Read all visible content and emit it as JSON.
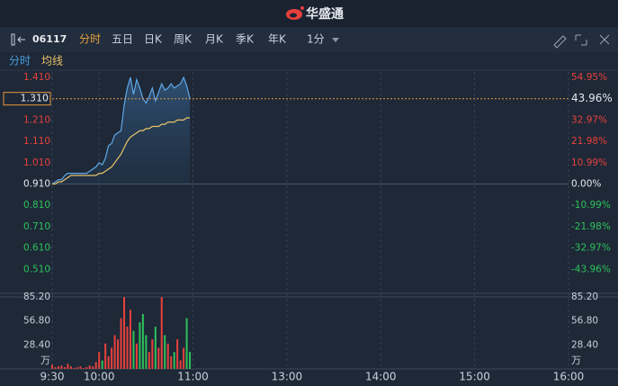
{
  "header": {
    "title": "华盛通"
  },
  "toolbar": {
    "code": "06117",
    "tabs": [
      "分时",
      "五日",
      "日K",
      "周K",
      "月K",
      "季K",
      "年K"
    ],
    "interval": "1分"
  },
  "chart_data": {
    "type": "line",
    "x": [
      0,
      2,
      4,
      6,
      8,
      10,
      12,
      14,
      16,
      18,
      20,
      22,
      24,
      26,
      28,
      30,
      32,
      34,
      36,
      38,
      40,
      42,
      44,
      46,
      48,
      50,
      52,
      54,
      56,
      58,
      60,
      62,
      64,
      66,
      68,
      70,
      72,
      74,
      76,
      78,
      80,
      82,
      84,
      86,
      88
    ],
    "xlim": [
      0,
      330
    ],
    "xticks": [
      {
        "value": 0,
        "label": "9:30"
      },
      {
        "value": 30,
        "label": "10:00"
      },
      {
        "value": 90,
        "label": "11:00"
      },
      {
        "value": 150,
        "label": "13:00"
      },
      {
        "value": 210,
        "label": "14:00"
      },
      {
        "value": 270,
        "label": "15:00"
      },
      {
        "value": 330,
        "label": "16:00"
      }
    ],
    "ylim": [
      0.41,
      1.41
    ],
    "yticks": [
      {
        "value": 1.41,
        "label": "1.410"
      },
      {
        "value": 1.21,
        "label": "1.210"
      },
      {
        "value": 1.11,
        "label": "1.110"
      },
      {
        "value": 1.01,
        "label": "1.010"
      },
      {
        "value": 0.91,
        "label": "0.910"
      },
      {
        "value": 0.81,
        "label": "0.810"
      },
      {
        "value": 0.71,
        "label": "0.710"
      },
      {
        "value": 0.61,
        "label": "0.610"
      },
      {
        "value": 0.51,
        "label": "0.510"
      }
    ],
    "y2lim": [
      -54.95,
      54.95
    ],
    "y2ticks": [
      {
        "value": 54.95,
        "label": "54.95%"
      },
      {
        "value": 32.97,
        "label": "32.97%"
      },
      {
        "value": 21.98,
        "label": "21.98%"
      },
      {
        "value": 10.99,
        "label": "10.99%"
      },
      {
        "value": 0,
        "label": "0.00%"
      },
      {
        "value": -10.99,
        "label": "-10.99%"
      },
      {
        "value": -21.98,
        "label": "-21.98%"
      },
      {
        "value": -32.97,
        "label": "-32.97%"
      },
      {
        "value": -43.96,
        "label": "-43.96%"
      }
    ],
    "series": [
      {
        "name": "分时",
        "color": "#5fa8e8",
        "values": [
          0.91,
          0.92,
          0.93,
          0.93,
          0.95,
          0.96,
          0.96,
          0.96,
          0.96,
          0.96,
          0.96,
          0.96,
          0.97,
          0.98,
          0.99,
          1.01,
          1.0,
          1.03,
          1.09,
          1.1,
          1.14,
          1.15,
          1.16,
          1.28,
          1.36,
          1.41,
          1.33,
          1.4,
          1.36,
          1.31,
          1.29,
          1.32,
          1.36,
          1.3,
          1.34,
          1.38,
          1.35,
          1.36,
          1.38,
          1.36,
          1.37,
          1.38,
          1.41,
          1.37,
          1.31
        ]
      },
      {
        "name": "均线",
        "color": "#e8c36a",
        "values": [
          0.91,
          0.91,
          0.92,
          0.92,
          0.93,
          0.94,
          0.95,
          0.95,
          0.95,
          0.95,
          0.95,
          0.95,
          0.95,
          0.95,
          0.95,
          0.96,
          0.96,
          0.97,
          0.98,
          0.99,
          1.01,
          1.03,
          1.05,
          1.08,
          1.11,
          1.13,
          1.14,
          1.15,
          1.16,
          1.16,
          1.17,
          1.17,
          1.18,
          1.18,
          1.18,
          1.19,
          1.19,
          1.2,
          1.2,
          1.2,
          1.21,
          1.21,
          1.21,
          1.22,
          1.22
        ]
      }
    ],
    "last": {
      "value": 1.31,
      "label": "1.310",
      "change": {
        "value": 43.96,
        "label": "43.96%"
      }
    },
    "volume": {
      "values": [
        5,
        2,
        3,
        4,
        2,
        6,
        3,
        1,
        2,
        3,
        1,
        2,
        4,
        3,
        8,
        20,
        10,
        30,
        15,
        25,
        40,
        35,
        60,
        85,
        50,
        70,
        45,
        30,
        55,
        65,
        40,
        20,
        35,
        50,
        25,
        85,
        40,
        30,
        15,
        20,
        35,
        10,
        25,
        60,
        20
      ],
      "ylim": [
        0,
        85.2
      ],
      "yticks": [
        {
          "value": 85.2,
          "label": "85.20"
        },
        {
          "value": 56.8,
          "label": "56.80"
        },
        {
          "value": 28.4,
          "label": "28.40"
        }
      ],
      "unit": "万"
    },
    "up_color": "#e8413c",
    "down_color": "#2ec25b",
    "last_color": "#e89a3c",
    "grid": true
  }
}
